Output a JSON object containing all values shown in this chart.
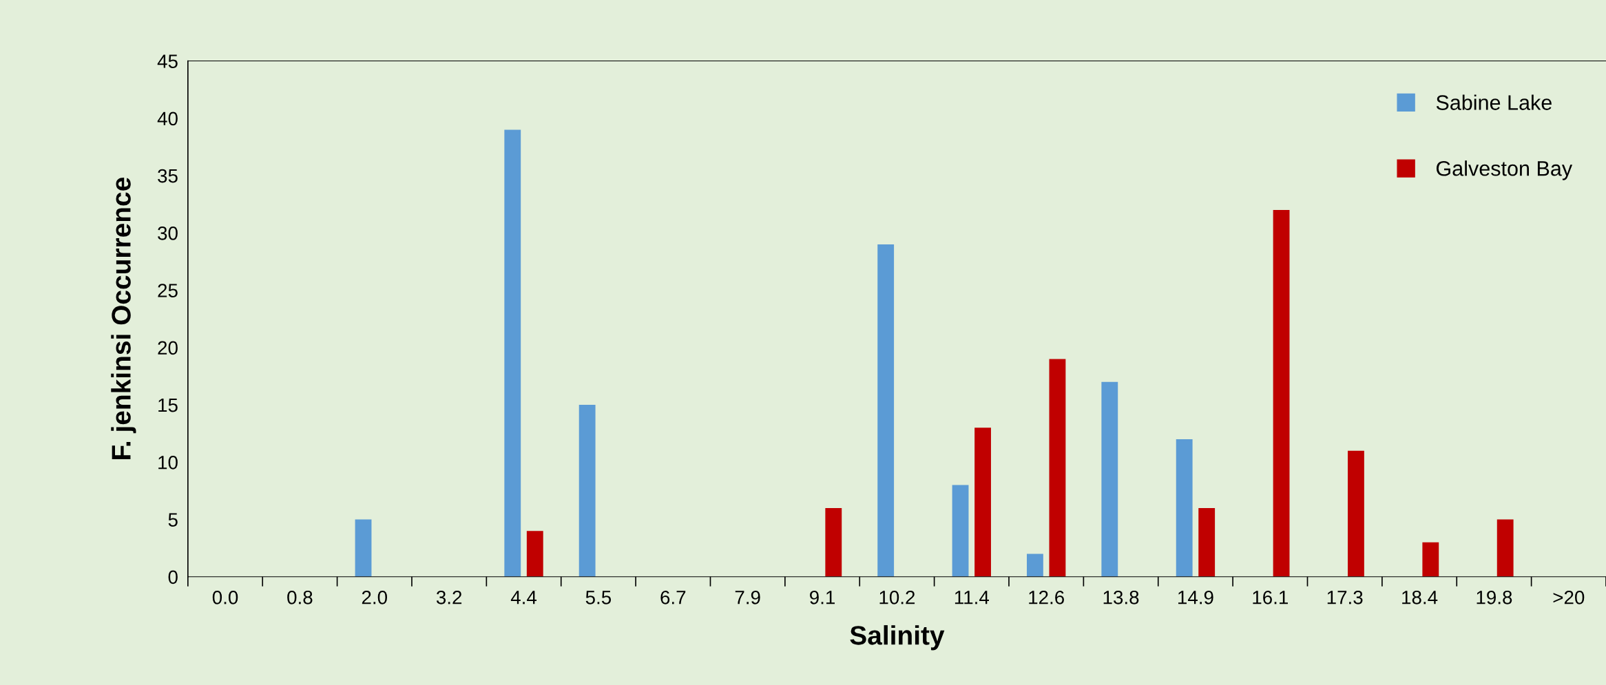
{
  "chart_data": {
    "type": "bar",
    "xlabel": "Salinity",
    "ylabel": "F. jenkinsi Occurrence",
    "categories": [
      "0.0",
      "0.8",
      "2.0",
      "3.2",
      "4.4",
      "5.5",
      "6.7",
      "7.9",
      "9.1",
      "10.2",
      "11.4",
      "12.6",
      "13.8",
      "14.9",
      "16.1",
      "17.3",
      "18.4",
      "19.8",
      ">20"
    ],
    "series": [
      {
        "name": "Sabine Lake",
        "color": "#5b9bd5",
        "values": [
          0,
          0,
          5,
          0,
          39,
          15,
          0,
          0,
          0,
          29,
          8,
          2,
          17,
          12,
          0,
          0,
          0,
          0,
          0
        ]
      },
      {
        "name": "Galveston Bay",
        "color": "#c00000",
        "values": [
          0,
          0,
          0,
          0,
          4,
          0,
          0,
          0,
          6,
          0,
          13,
          19,
          0,
          6,
          32,
          11,
          3,
          5,
          0
        ]
      }
    ],
    "ylim": [
      0,
      45
    ],
    "yticks": [
      0,
      5,
      10,
      15,
      20,
      25,
      30,
      35,
      40,
      45
    ],
    "grid": false,
    "legend": "top right"
  }
}
